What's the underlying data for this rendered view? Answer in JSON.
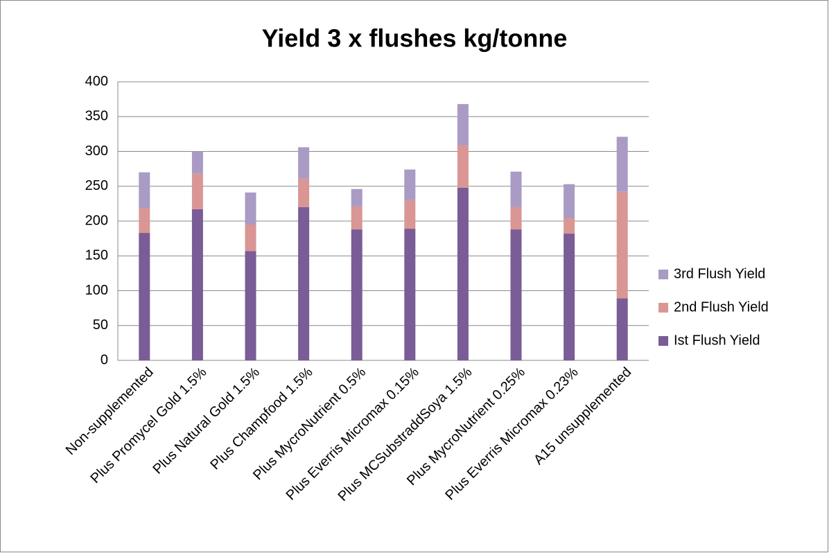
{
  "chart_data": {
    "type": "stacked-bar",
    "title": "Yield 3 x flushes kg/tonne",
    "categories": [
      "Non-supplemented",
      "Plus Promycel Gold 1.5%",
      "Plus Natural Gold 1.5%",
      "Plus  Champfood 1.5%",
      "Plus MycroNutrient 0.5%",
      "Plus  Everris Micromax 0.15%",
      "Plus MCSubstraddSoya 1.5%",
      "Plus MycroNutrient 0.25%",
      "Plus  Everris Micromax 0.23%",
      "A15 unsupplemented"
    ],
    "series": [
      {
        "name": "Ist Flush Yield",
        "color": "#7a5c96",
        "values": [
          183,
          217,
          157,
          220,
          188,
          189,
          248,
          188,
          182,
          89
        ]
      },
      {
        "name": "2nd Flush Yield",
        "color": "#d99694",
        "values": [
          35,
          51,
          38,
          41,
          33,
          41,
          61,
          32,
          22,
          153
        ]
      },
      {
        "name": "3rd Flush Yield",
        "color": "#a99bc4",
        "values": [
          52,
          32,
          46,
          45,
          25,
          44,
          59,
          51,
          49,
          79
        ]
      }
    ],
    "ylim": [
      0,
      400
    ],
    "yticks": [
      0,
      50,
      100,
      150,
      200,
      250,
      300,
      350,
      400
    ],
    "grid": true,
    "legend": "right"
  }
}
